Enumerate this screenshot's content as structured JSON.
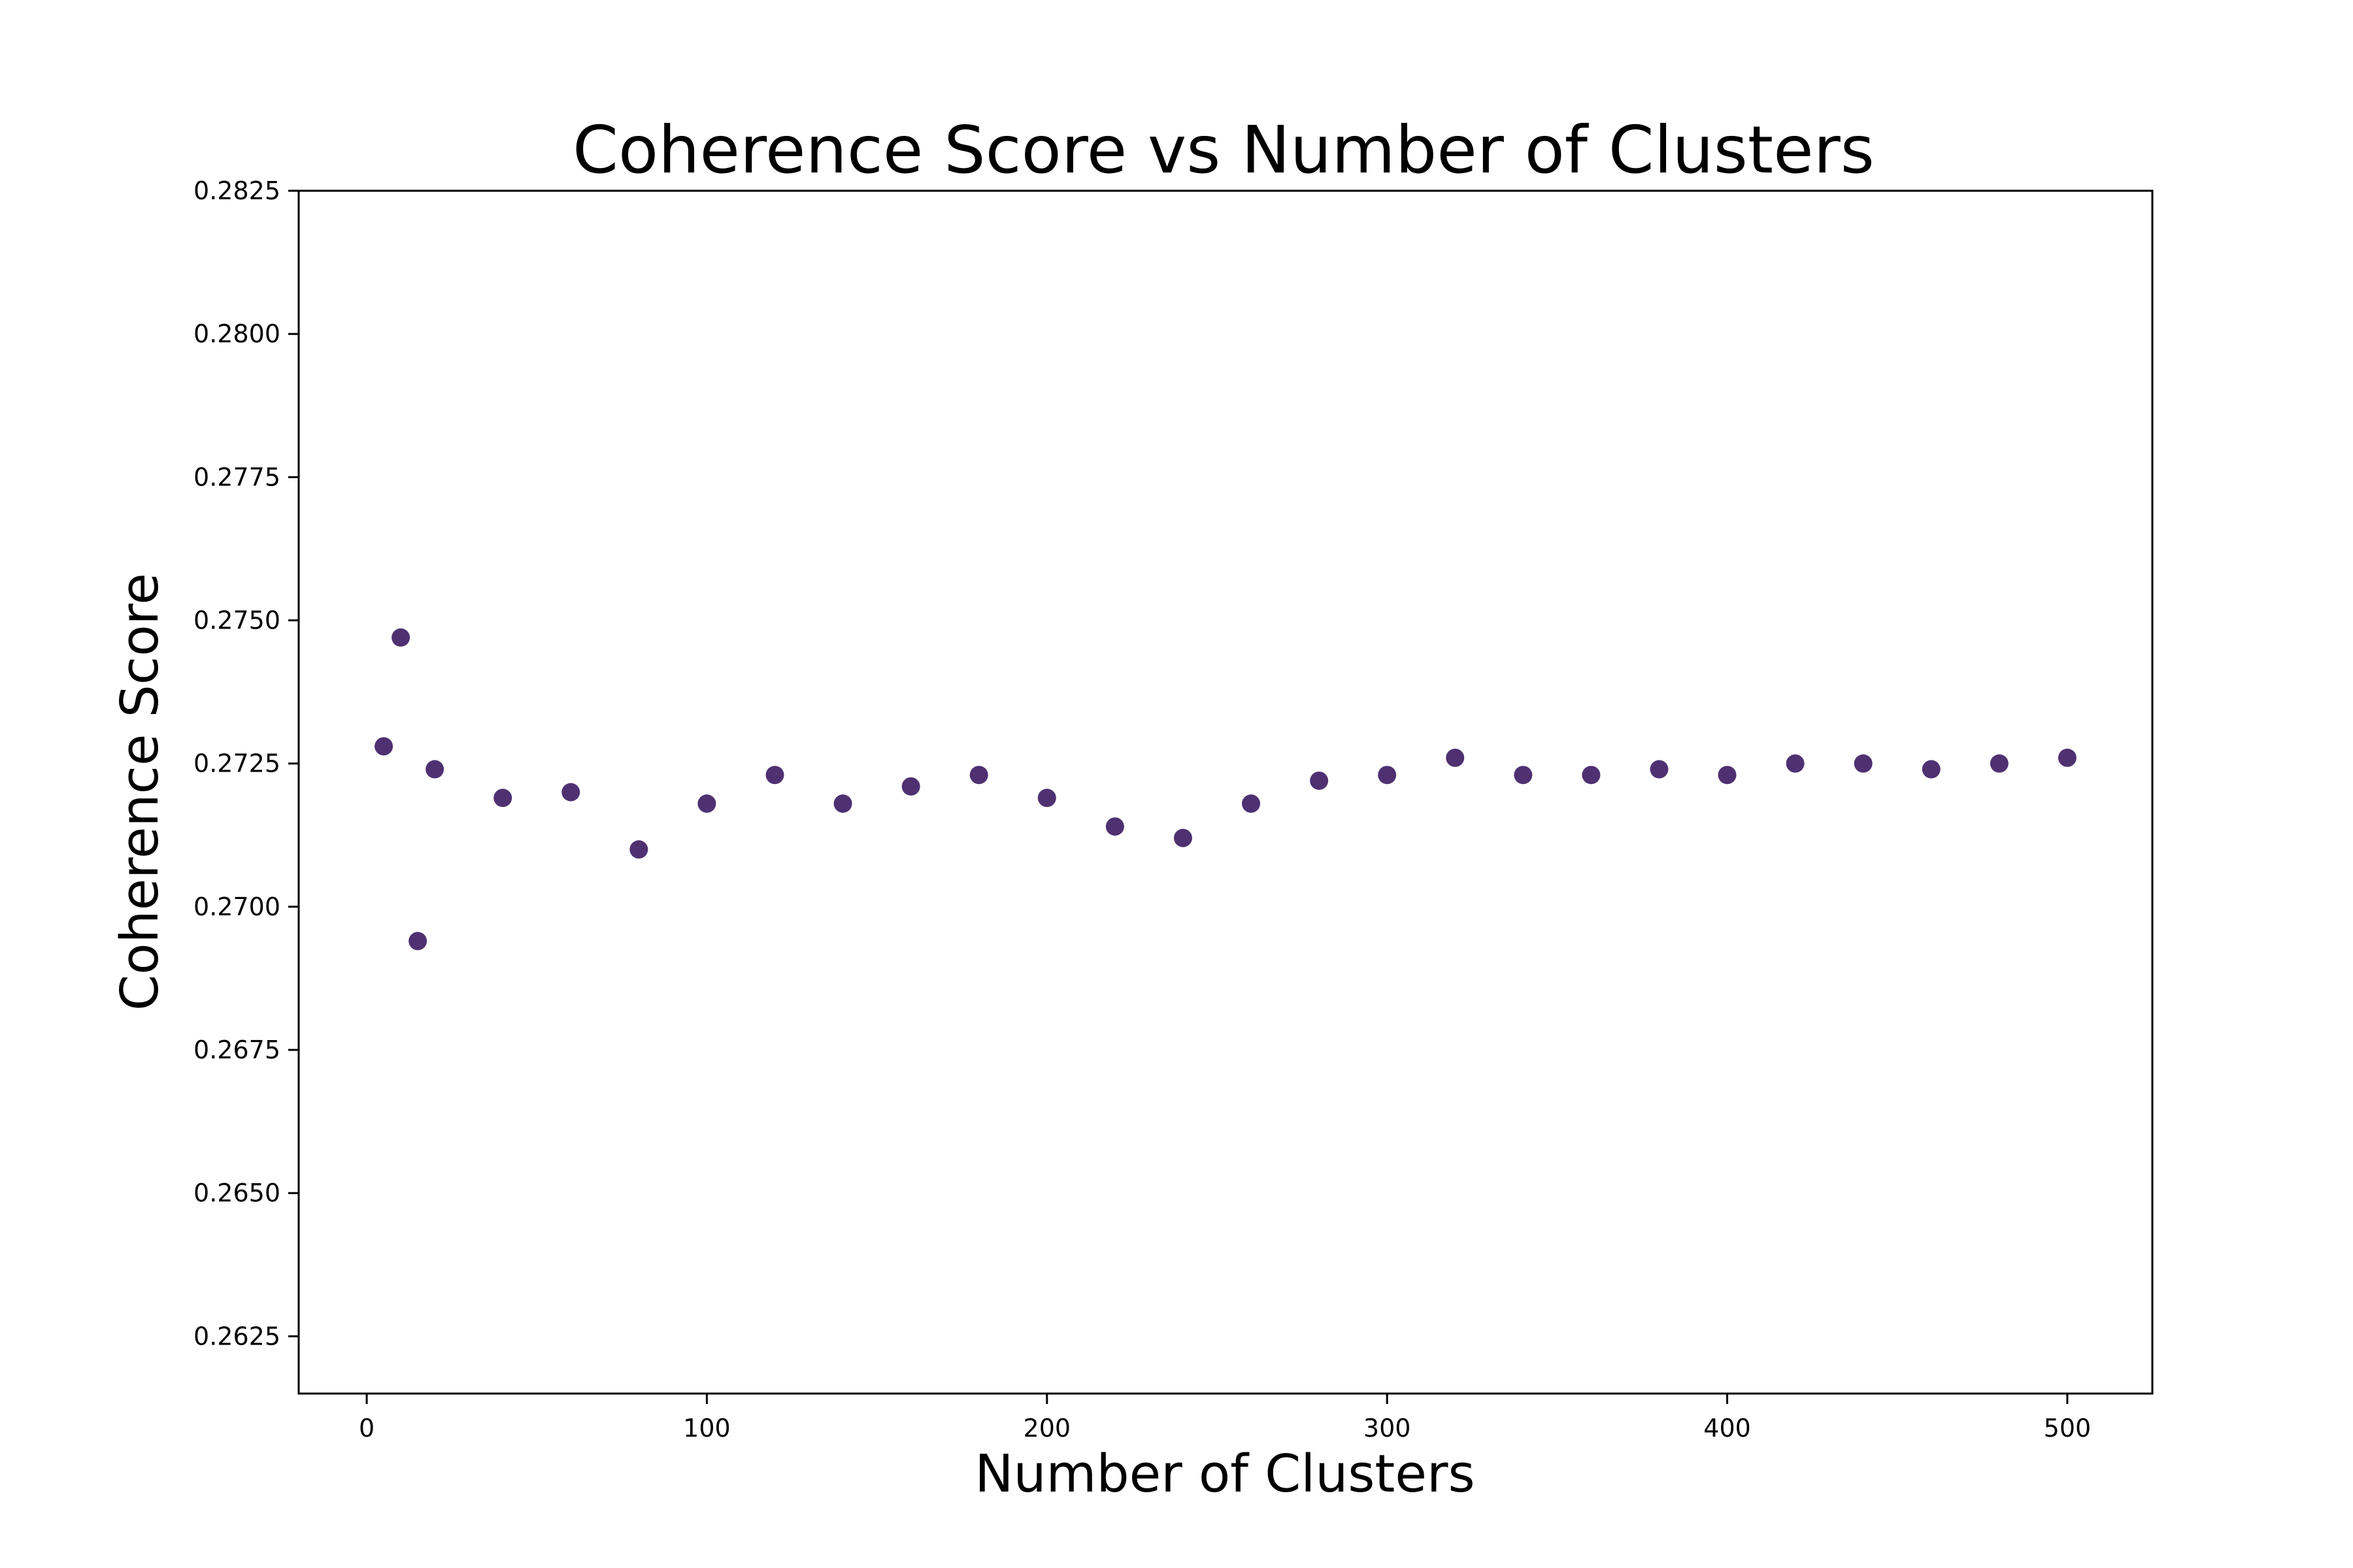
{
  "chart_data": {
    "type": "scatter",
    "title": "Coherence Score vs Number of Clusters",
    "xlabel": "Number of Clusters",
    "ylabel": "Coherence Score",
    "xlim": [
      -20,
      525
    ],
    "ylim": [
      0.2615,
      0.2825
    ],
    "xticks": [
      0,
      100,
      200,
      300,
      400,
      500
    ],
    "yticks": [
      0.2625,
      0.265,
      0.2675,
      0.27,
      0.2725,
      0.275,
      0.2775,
      0.28,
      0.2825
    ],
    "xtick_labels": [
      "0",
      "100",
      "200",
      "300",
      "400",
      "500"
    ],
    "ytick_labels": [
      "0.2625",
      "0.2650",
      "0.2675",
      "0.2700",
      "0.2725",
      "0.2750",
      "0.2775",
      "0.2800",
      "0.2825"
    ],
    "grid": false,
    "marker_color": "#4f3172",
    "x": [
      5,
      10,
      15,
      20,
      40,
      60,
      80,
      100,
      120,
      140,
      160,
      180,
      200,
      220,
      240,
      260,
      280,
      300,
      320,
      340,
      360,
      380,
      400,
      420,
      440,
      460,
      480,
      500
    ],
    "y": [
      0.2728,
      0.2747,
      0.2694,
      0.2724,
      0.2719,
      0.272,
      0.271,
      0.2718,
      0.2723,
      0.2718,
      0.2721,
      0.2723,
      0.2719,
      0.2714,
      0.2712,
      0.2718,
      0.2722,
      0.2723,
      0.2726,
      0.2723,
      0.2723,
      0.2724,
      0.2723,
      0.2725,
      0.2725,
      0.2724,
      0.2725,
      0.2726
    ]
  }
}
